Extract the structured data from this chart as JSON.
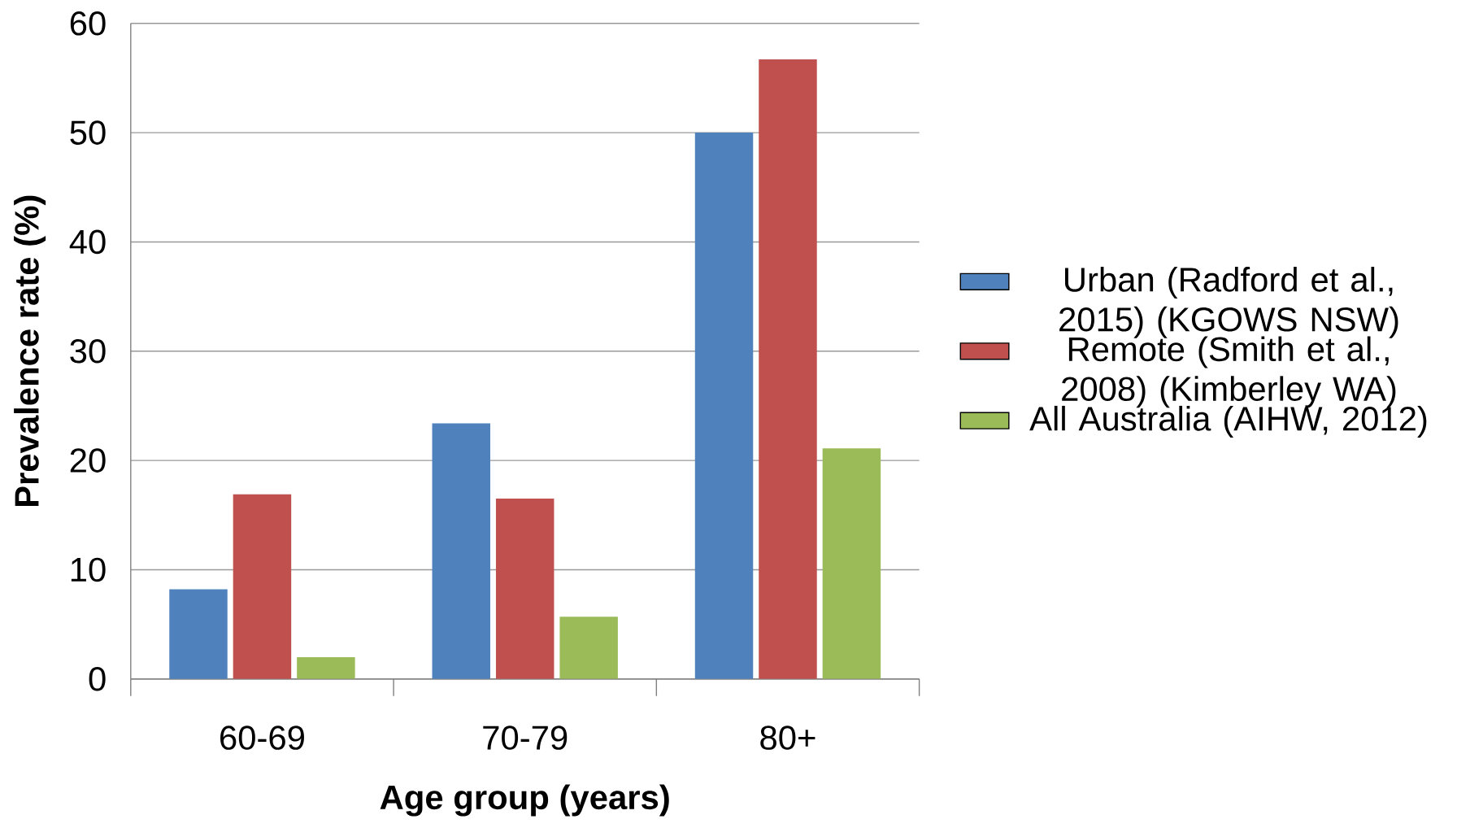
{
  "chart_data": {
    "type": "bar",
    "xlabel": "Age  group (years)",
    "ylabel": "Prevalence rate (%)",
    "categories": [
      "60-69",
      "70-79",
      "80+"
    ],
    "series": [
      {
        "name": "Urban (Radford et al., 2015) (KGOWS NSW)",
        "color": "#4f81bd",
        "values": [
          8.2,
          23.4,
          50.0
        ]
      },
      {
        "name": "Remote (Smith et al., 2008) (Kimberley WA)",
        "color": "#c0504d",
        "values": [
          16.9,
          16.5,
          56.7
        ]
      },
      {
        "name": "All Australia (AIHW, 2012)",
        "color": "#9bbb59",
        "values": [
          2.0,
          5.7,
          21.1
        ]
      }
    ],
    "ylim": [
      0,
      60
    ],
    "yticks": [
      0,
      10,
      20,
      30,
      40,
      50,
      60
    ],
    "grid": "y",
    "legend": "right"
  }
}
